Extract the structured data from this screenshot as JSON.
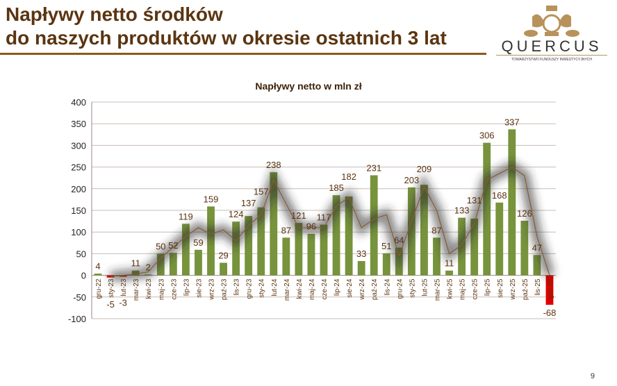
{
  "header": {
    "title_line1": "Napływy netto środków",
    "title_line2": "do naszych produktów w okresie ostatnich 3 lat"
  },
  "logo": {
    "name": "QUERCUS",
    "subtitle": "TOWARZYSTWO FUNDUSZY INWESTYCYJNYCH"
  },
  "page_number": "9",
  "colors": {
    "positive": "#77933c",
    "negative": "#e00000",
    "trend": "#8b5a2b",
    "title": "#5b3410"
  },
  "chart_data": {
    "type": "bar",
    "title": "Napływy netto w mln zł",
    "xlabel": "",
    "ylabel": "",
    "ylim": [
      -100,
      400
    ],
    "yticks": [
      -100,
      -50,
      0,
      50,
      100,
      150,
      200,
      250,
      300,
      350,
      400
    ],
    "grid": true,
    "categories": [
      "gru-22",
      "sty-23",
      "lut-23",
      "mar-23",
      "kwi-23",
      "maj-23",
      "cze-23",
      "lip-23",
      "sie-23",
      "wrz-23",
      "paź-23",
      "lis-23",
      "gru-23",
      "sty-24",
      "lut-24",
      "mar-24",
      "kwi-24",
      "maj-24",
      "cze-24",
      "lip-24",
      "sie-24",
      "wrz-24",
      "paź-24",
      "lis-24",
      "gru-24",
      "sty-25",
      "lut-25",
      "mar-25",
      "kwi-25",
      "maj-25",
      "cze-25",
      "lip-25",
      "sie-25",
      "wrz-25",
      "paź-25",
      "lis-25",
      "gru-25"
    ],
    "values": [
      4,
      -5,
      -3,
      11,
      2,
      50,
      52,
      119,
      59,
      159,
      29,
      124,
      137,
      157,
      238,
      87,
      121,
      96,
      117,
      185,
      182,
      33,
      231,
      51,
      64,
      203,
      209,
      87,
      11,
      133,
      131,
      306,
      168,
      337,
      126,
      47,
      -68
    ],
    "trend": [
      null,
      -3,
      0,
      3,
      8,
      40,
      65,
      90,
      110,
      95,
      105,
      80,
      115,
      140,
      220,
      165,
      110,
      110,
      110,
      160,
      180,
      110,
      130,
      140,
      45,
      125,
      205,
      150,
      50,
      70,
      120,
      220,
      235,
      250,
      230,
      90,
      0
    ]
  }
}
